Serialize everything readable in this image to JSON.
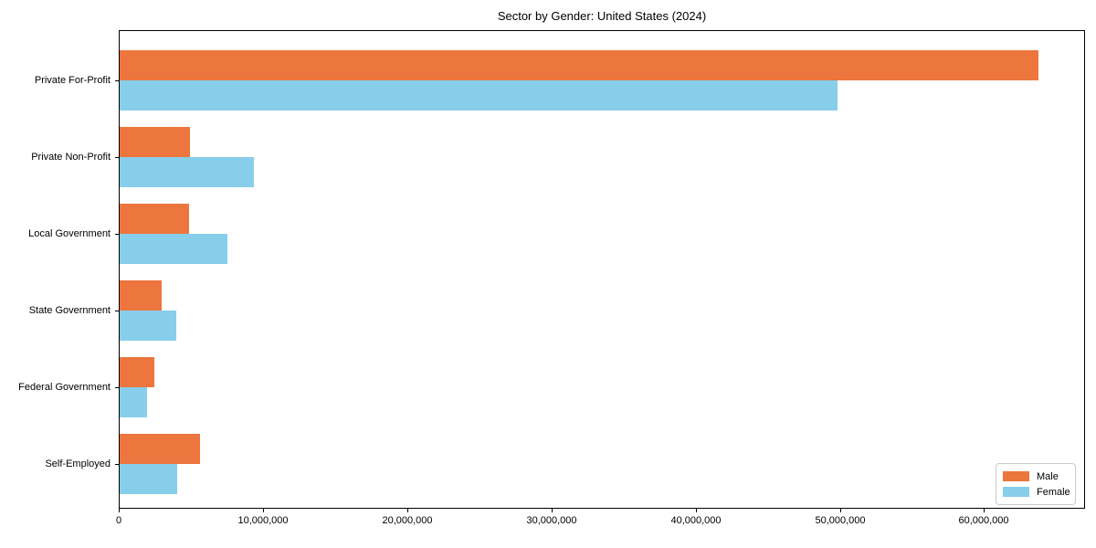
{
  "chart_data": {
    "type": "bar",
    "orientation": "horizontal",
    "title": "Sector by Gender: United States (2024)",
    "categories": [
      "Private For-Profit",
      "Private Non-Profit",
      "Local Government",
      "State Government",
      "Federal Government",
      "Self-Employed"
    ],
    "series": [
      {
        "name": "Male",
        "color": "#EC763D",
        "values": [
          63700000,
          4900000,
          4800000,
          2900000,
          2400000,
          5600000
        ]
      },
      {
        "name": "Female",
        "color": "#87CEEB",
        "values": [
          49800000,
          9300000,
          7500000,
          3900000,
          1900000,
          4000000
        ]
      }
    ],
    "xlabel": "",
    "ylabel": "",
    "xlim": [
      0,
      67000000
    ],
    "x_ticks": [
      0,
      10000000,
      20000000,
      30000000,
      40000000,
      50000000,
      60000000
    ],
    "x_tick_labels": [
      "0",
      "10,000,000",
      "20,000,000",
      "30,000,000",
      "40,000,000",
      "50,000,000",
      "60,000,000"
    ],
    "grid": false,
    "legend_position": "lower right",
    "axis_color": "#000000",
    "background_color": "#ffffff"
  }
}
